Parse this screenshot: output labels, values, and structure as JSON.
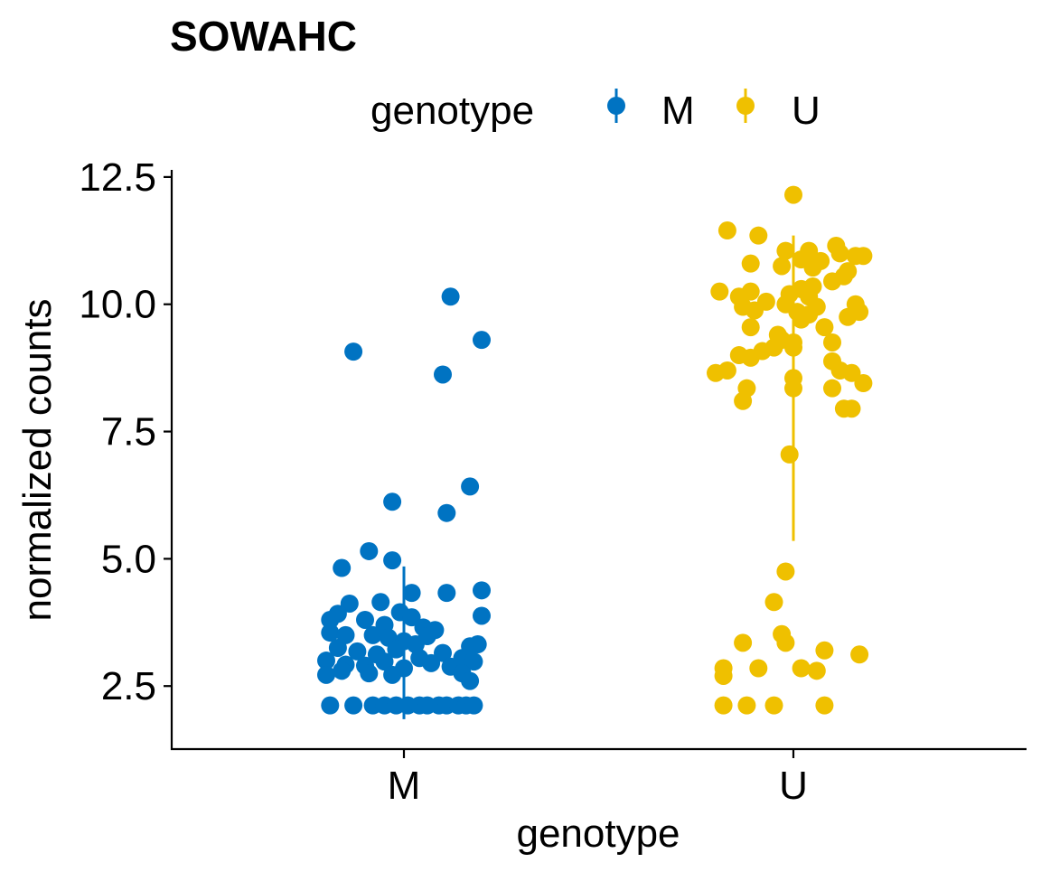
{
  "chart_data": {
    "type": "scatter",
    "title": "SOWAHC",
    "xlabel": "genotype",
    "ylabel": "normalized counts",
    "categories": [
      "M",
      "U"
    ],
    "ylim": [
      1.35,
      12.8
    ],
    "yticks": [
      2.5,
      5.0,
      7.5,
      10.0,
      12.5
    ],
    "ytick_labels": [
      "2.5",
      "5.0",
      "7.5",
      "10.0",
      "12.5"
    ],
    "grid": false,
    "legend": {
      "title": "genotype",
      "position": "top",
      "entries": [
        {
          "label": "M",
          "color": "#0073C2"
        },
        {
          "label": "U",
          "color": "#EFC000"
        }
      ]
    },
    "series": [
      {
        "name": "M",
        "category": "M",
        "color": "#0073C2",
        "interval": [
          1.85,
          4.85
        ],
        "points": [
          [
            -0.13,
            9.07
          ],
          [
            0.12,
            10.15
          ],
          [
            0.2,
            9.3
          ],
          [
            0.1,
            8.62
          ],
          [
            -0.03,
            6.12
          ],
          [
            0.17,
            6.42
          ],
          [
            0.11,
            5.9
          ],
          [
            -0.09,
            5.15
          ],
          [
            -0.16,
            4.82
          ],
          [
            -0.03,
            4.97
          ],
          [
            0.02,
            4.33
          ],
          [
            0.11,
            4.33
          ],
          [
            0.2,
            4.38
          ],
          [
            -0.14,
            4.12
          ],
          [
            -0.06,
            4.15
          ],
          [
            -0.17,
            3.92
          ],
          [
            -0.19,
            3.8
          ],
          [
            -0.1,
            3.8
          ],
          [
            -0.05,
            3.7
          ],
          [
            -0.01,
            3.95
          ],
          [
            0.02,
            3.85
          ],
          [
            0.05,
            3.65
          ],
          [
            0.08,
            3.6
          ],
          [
            0.2,
            3.88
          ],
          [
            -0.19,
            3.55
          ],
          [
            -0.15,
            3.5
          ],
          [
            -0.08,
            3.5
          ],
          [
            -0.04,
            3.45
          ],
          [
            0.0,
            3.38
          ],
          [
            0.03,
            3.32
          ],
          [
            0.06,
            3.48
          ],
          [
            -0.17,
            3.25
          ],
          [
            -0.12,
            3.18
          ],
          [
            -0.07,
            3.12
          ],
          [
            -0.02,
            3.22
          ],
          [
            0.04,
            3.05
          ],
          [
            0.1,
            3.15
          ],
          [
            0.15,
            3.05
          ],
          [
            0.17,
            3.28
          ],
          [
            0.19,
            3.32
          ],
          [
            -0.2,
            3.0
          ],
          [
            -0.15,
            2.92
          ],
          [
            -0.1,
            2.9
          ],
          [
            -0.05,
            2.98
          ],
          [
            0.0,
            2.85
          ],
          [
            0.07,
            2.95
          ],
          [
            0.12,
            2.88
          ],
          [
            0.18,
            2.98
          ],
          [
            -0.2,
            2.72
          ],
          [
            -0.16,
            2.8
          ],
          [
            -0.09,
            2.75
          ],
          [
            -0.03,
            2.72
          ],
          [
            0.15,
            2.75
          ],
          [
            0.17,
            2.6
          ],
          [
            -0.19,
            2.12
          ],
          [
            -0.13,
            2.12
          ],
          [
            -0.08,
            2.12
          ],
          [
            -0.05,
            2.12
          ],
          [
            -0.02,
            2.12
          ],
          [
            0.01,
            2.12
          ],
          [
            0.04,
            2.12
          ],
          [
            0.06,
            2.12
          ],
          [
            0.09,
            2.12
          ],
          [
            0.11,
            2.12
          ],
          [
            0.14,
            2.12
          ],
          [
            0.16,
            2.12
          ],
          [
            0.18,
            2.12
          ]
        ]
      },
      {
        "name": "U",
        "category": "U",
        "color": "#EFC000",
        "interval": [
          5.35,
          11.35
        ],
        "points": [
          [
            0.0,
            12.15
          ],
          [
            -0.17,
            11.45
          ],
          [
            -0.09,
            11.35
          ],
          [
            -0.02,
            11.05
          ],
          [
            0.04,
            11.05
          ],
          [
            0.11,
            11.15
          ],
          [
            0.12,
            11.0
          ],
          [
            0.16,
            10.95
          ],
          [
            0.18,
            10.95
          ],
          [
            -0.11,
            10.8
          ],
          [
            -0.03,
            10.75
          ],
          [
            0.02,
            10.88
          ],
          [
            0.05,
            10.72
          ],
          [
            0.07,
            10.85
          ],
          [
            0.14,
            10.65
          ],
          [
            0.1,
            10.45
          ],
          [
            0.13,
            10.55
          ],
          [
            0.05,
            10.35
          ],
          [
            -0.19,
            10.25
          ],
          [
            -0.14,
            10.15
          ],
          [
            -0.11,
            10.25
          ],
          [
            -0.07,
            10.05
          ],
          [
            -0.01,
            10.2
          ],
          [
            0.02,
            10.3
          ],
          [
            0.04,
            10.15
          ],
          [
            -0.13,
            9.95
          ],
          [
            -0.1,
            9.88
          ],
          [
            -0.02,
            10.0
          ],
          [
            0.01,
            9.85
          ],
          [
            0.04,
            9.8
          ],
          [
            0.06,
            9.95
          ],
          [
            0.16,
            10.0
          ],
          [
            0.17,
            9.85
          ],
          [
            0.14,
            9.75
          ],
          [
            -0.11,
            9.55
          ],
          [
            -0.04,
            9.4
          ],
          [
            0.0,
            9.25
          ],
          [
            0.02,
            9.7
          ],
          [
            0.08,
            9.55
          ],
          [
            0.1,
            9.25
          ],
          [
            -0.14,
            9.0
          ],
          [
            -0.08,
            9.08
          ],
          [
            -0.05,
            9.15
          ],
          [
            -0.03,
            9.3
          ],
          [
            0.0,
            9.15
          ],
          [
            -0.11,
            8.95
          ],
          [
            0.1,
            8.88
          ],
          [
            -0.2,
            8.65
          ],
          [
            -0.17,
            8.7
          ],
          [
            -0.12,
            8.35
          ],
          [
            -0.13,
            8.1
          ],
          [
            0.0,
            8.55
          ],
          [
            0.0,
            8.35
          ],
          [
            0.12,
            8.7
          ],
          [
            0.15,
            8.65
          ],
          [
            0.18,
            8.45
          ],
          [
            0.1,
            8.35
          ],
          [
            0.13,
            7.95
          ],
          [
            0.15,
            7.95
          ],
          [
            -0.01,
            7.05
          ],
          [
            -0.02,
            4.75
          ],
          [
            -0.05,
            4.15
          ],
          [
            -0.03,
            3.52
          ],
          [
            -0.13,
            3.35
          ],
          [
            -0.02,
            3.35
          ],
          [
            0.08,
            3.2
          ],
          [
            0.17,
            3.12
          ],
          [
            -0.18,
            2.85
          ],
          [
            -0.09,
            2.85
          ],
          [
            0.02,
            2.85
          ],
          [
            0.06,
            2.8
          ],
          [
            -0.18,
            2.7
          ],
          [
            -0.18,
            2.12
          ],
          [
            -0.12,
            2.12
          ],
          [
            -0.05,
            2.12
          ],
          [
            0.08,
            2.12
          ]
        ]
      }
    ]
  }
}
